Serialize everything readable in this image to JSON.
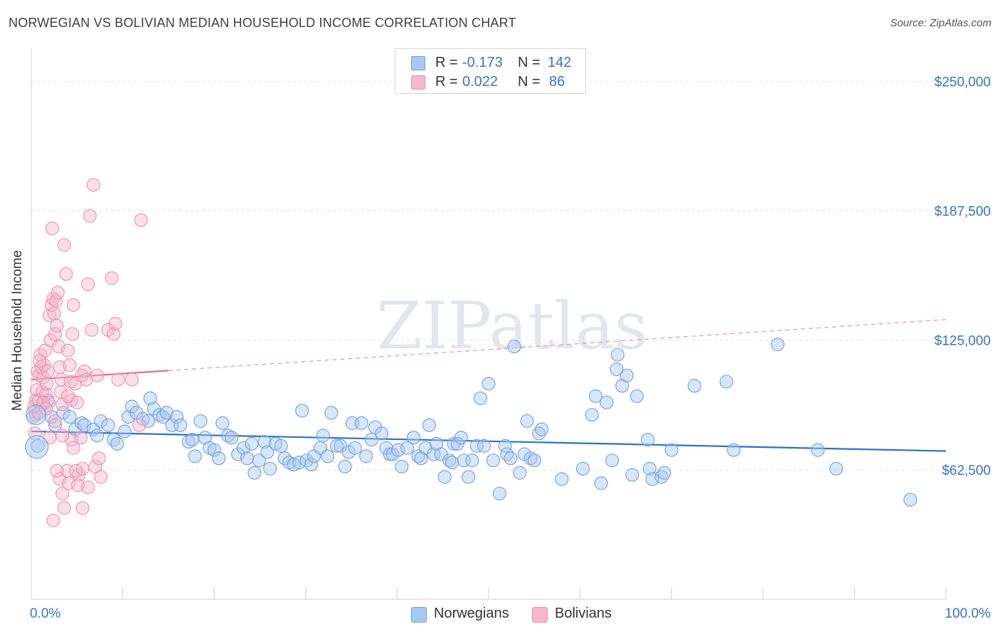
{
  "title": "NORWEGIAN VS BOLIVIAN MEDIAN HOUSEHOLD INCOME CORRELATION CHART",
  "source": "Source: ZipAtlas.com",
  "watermark": "ZIPatlas",
  "legend": {
    "rows": [
      {
        "r_label": "R =",
        "r_value": "-0.173",
        "n_label": "N =",
        "n_value": "142",
        "color": "#a9c8f1"
      },
      {
        "r_label": "R =",
        "r_value": "0.022",
        "n_label": "N =",
        "n_value": "86",
        "color": "#f5b8cd"
      }
    ]
  },
  "bottom_legend": [
    {
      "label": "Norwegians",
      "color": "#a9c8f1"
    },
    {
      "label": "Bolivians",
      "color": "#f5b8cd"
    }
  ],
  "chart_data": {
    "type": "scatter",
    "title": "NORWEGIAN VS BOLIVIAN MEDIAN HOUSEHOLD INCOME CORRELATION CHART",
    "xlabel": "",
    "ylabel": "Median Household Income",
    "xlim": [
      0,
      100
    ],
    "ylim": [
      0,
      262500
    ],
    "x_tick_labels": [
      "0.0%",
      "100.0%"
    ],
    "y_ticks": [
      62500,
      125000,
      187500,
      250000
    ],
    "y_tick_labels": [
      "$62,500",
      "$125,000",
      "$187,500",
      "$250,000"
    ],
    "grid": true,
    "legend_position": "top-center",
    "series": [
      {
        "name": "Norwegians",
        "color": "#6f9fe0",
        "fill": "#a9c8f1",
        "trend": {
          "x0": 0,
          "y0": 81000,
          "x1": 100,
          "y1": 71500,
          "dashed_from": null,
          "line_color": "#2f6fd0"
        },
        "points": [
          [
            0.5,
            89000
          ],
          [
            0.7,
            74000
          ],
          [
            1.3,
            94000
          ],
          [
            1.8,
            96000
          ],
          [
            2.2,
            88000
          ],
          [
            2.6,
            84000
          ],
          [
            3.5,
            90000
          ],
          [
            4.2,
            88000
          ],
          [
            4.8,
            82000
          ],
          [
            5.5,
            85000
          ],
          [
            5.8,
            84000
          ],
          [
            6.8,
            82000
          ],
          [
            7.2,
            79000
          ],
          [
            7.6,
            86000
          ],
          [
            8.4,
            84000
          ],
          [
            9.0,
            77000
          ],
          [
            9.4,
            75000
          ],
          [
            10.2,
            81000
          ],
          [
            10.6,
            88000
          ],
          [
            11.0,
            93000
          ],
          [
            11.5,
            90000
          ],
          [
            12.2,
            87000
          ],
          [
            12.8,
            86000
          ],
          [
            13.0,
            97000
          ],
          [
            13.4,
            92000
          ],
          [
            14.0,
            89000
          ],
          [
            14.4,
            88000
          ],
          [
            14.8,
            90000
          ],
          [
            15.4,
            84000
          ],
          [
            15.9,
            88000
          ],
          [
            16.3,
            84000
          ],
          [
            17.2,
            76000
          ],
          [
            17.6,
            77000
          ],
          [
            17.9,
            69000
          ],
          [
            18.5,
            86000
          ],
          [
            19.0,
            78000
          ],
          [
            19.5,
            73000
          ],
          [
            20.0,
            72000
          ],
          [
            20.5,
            68000
          ],
          [
            20.9,
            85000
          ],
          [
            21.5,
            79000
          ],
          [
            21.9,
            78000
          ],
          [
            22.6,
            70000
          ],
          [
            23.2,
            73000
          ],
          [
            23.6,
            68000
          ],
          [
            24.1,
            75000
          ],
          [
            24.4,
            61000
          ],
          [
            24.9,
            67000
          ],
          [
            25.5,
            76000
          ],
          [
            25.8,
            71000
          ],
          [
            26.1,
            63000
          ],
          [
            26.7,
            75000
          ],
          [
            27.3,
            74000
          ],
          [
            27.7,
            68000
          ],
          [
            28.2,
            66000
          ],
          [
            28.7,
            65000
          ],
          [
            29.3,
            66000
          ],
          [
            29.6,
            91000
          ],
          [
            30.1,
            67000
          ],
          [
            30.6,
            65000
          ],
          [
            30.9,
            69000
          ],
          [
            31.6,
            73000
          ],
          [
            31.9,
            79000
          ],
          [
            32.4,
            69000
          ],
          [
            32.8,
            90000
          ],
          [
            33.4,
            74000
          ],
          [
            33.8,
            74000
          ],
          [
            34.3,
            64000
          ],
          [
            34.7,
            71000
          ],
          [
            35.1,
            85000
          ],
          [
            35.4,
            73000
          ],
          [
            36.1,
            85000
          ],
          [
            36.6,
            69000
          ],
          [
            37.2,
            77000
          ],
          [
            37.6,
            83000
          ],
          [
            38.3,
            80000
          ],
          [
            38.8,
            73000
          ],
          [
            39.2,
            70000
          ],
          [
            39.5,
            70000
          ],
          [
            40.1,
            72000
          ],
          [
            40.5,
            64000
          ],
          [
            41.1,
            73000
          ],
          [
            41.8,
            78000
          ],
          [
            42.3,
            69000
          ],
          [
            42.6,
            68000
          ],
          [
            43.1,
            73000
          ],
          [
            43.5,
            84000
          ],
          [
            44.0,
            70000
          ],
          [
            44.3,
            75000
          ],
          [
            44.8,
            70000
          ],
          [
            45.2,
            59000
          ],
          [
            45.7,
            67000
          ],
          [
            46.2,
            75000
          ],
          [
            46.6,
            75000
          ],
          [
            47.0,
            78000
          ],
          [
            47.3,
            67000
          ],
          [
            47.8,
            59000
          ],
          [
            48.2,
            67000
          ],
          [
            48.7,
            74000
          ],
          [
            49.1,
            97000
          ],
          [
            49.5,
            74000
          ],
          [
            50.0,
            104000
          ],
          [
            50.5,
            67000
          ],
          [
            51.2,
            51000
          ],
          [
            51.8,
            74000
          ],
          [
            52.0,
            70000
          ],
          [
            52.4,
            68000
          ],
          [
            52.8,
            122000
          ],
          [
            53.4,
            61000
          ],
          [
            53.9,
            70000
          ],
          [
            54.2,
            86000
          ],
          [
            54.6,
            68000
          ],
          [
            55.0,
            67000
          ],
          [
            55.5,
            80000
          ],
          [
            55.8,
            82000
          ],
          [
            58.0,
            58000
          ],
          [
            60.3,
            63000
          ],
          [
            61.3,
            89000
          ],
          [
            61.7,
            98000
          ],
          [
            62.3,
            56000
          ],
          [
            62.9,
            95000
          ],
          [
            63.5,
            67000
          ],
          [
            64.1,
            118000
          ],
          [
            64.6,
            103000
          ],
          [
            65.1,
            108000
          ],
          [
            65.7,
            60000
          ],
          [
            66.2,
            98000
          ],
          [
            67.4,
            77000
          ],
          [
            67.6,
            63000
          ],
          [
            67.9,
            58000
          ],
          [
            68.9,
            59000
          ],
          [
            69.2,
            61000
          ],
          [
            70.0,
            72000
          ],
          [
            72.5,
            103000
          ],
          [
            76.0,
            105000
          ],
          [
            76.8,
            72000
          ],
          [
            81.6,
            123000
          ],
          [
            96.1,
            48000
          ],
          [
            86.0,
            72000
          ],
          [
            88.0,
            63000
          ],
          [
            64.0,
            111000
          ],
          [
            46.0,
            66000
          ]
        ]
      },
      {
        "name": "Bolivians",
        "color": "#ec8fb0",
        "fill": "#f5b8cd",
        "trend": {
          "x0": 0,
          "y0": 106000,
          "x1": 100,
          "y1": 135000,
          "solid_until": 15,
          "line_color": "#e46b97"
        },
        "points": [
          [
            0.2,
            88000
          ],
          [
            0.3,
            93000
          ],
          [
            0.4,
            80000
          ],
          [
            0.5,
            96000
          ],
          [
            0.6,
            101000
          ],
          [
            0.7,
            110000
          ],
          [
            0.8,
            96000
          ],
          [
            0.9,
            108000
          ],
          [
            1.0,
            118000
          ],
          [
            1.1,
            112000
          ],
          [
            1.2,
            100000
          ],
          [
            1.3,
            107000
          ],
          [
            1.4,
            113000
          ],
          [
            1.5,
            120000
          ],
          [
            1.6,
            99000
          ],
          [
            1.7,
            104000
          ],
          [
            1.8,
            110000
          ],
          [
            1.9,
            95000
          ],
          [
            2.0,
            137000
          ],
          [
            2.1,
            125000
          ],
          [
            2.2,
            142000
          ],
          [
            2.3,
            179000
          ],
          [
            2.4,
            145000
          ],
          [
            2.5,
            138000
          ],
          [
            2.6,
            128000
          ],
          [
            2.7,
            144000
          ],
          [
            2.8,
            132000
          ],
          [
            2.9,
            148000
          ],
          [
            3.0,
            122000
          ],
          [
            3.1,
            112000
          ],
          [
            3.2,
            100000
          ],
          [
            3.3,
            106000
          ],
          [
            3.4,
            94000
          ],
          [
            3.6,
            171000
          ],
          [
            3.8,
            157000
          ],
          [
            4.0,
            120000
          ],
          [
            4.2,
            113000
          ],
          [
            4.3,
            105000
          ],
          [
            4.4,
            96000
          ],
          [
            4.5,
            128000
          ],
          [
            4.6,
            142000
          ],
          [
            4.8,
            104000
          ],
          [
            5.0,
            95000
          ],
          [
            5.2,
            60000
          ],
          [
            5.4,
            78000
          ],
          [
            5.6,
            44000
          ],
          [
            5.8,
            110000
          ],
          [
            6.0,
            106000
          ],
          [
            6.2,
            152000
          ],
          [
            6.4,
            185000
          ],
          [
            6.6,
            130000
          ],
          [
            6.8,
            200000
          ],
          [
            7.0,
            64000
          ],
          [
            7.4,
            68000
          ],
          [
            7.6,
            59000
          ],
          [
            8.4,
            130000
          ],
          [
            8.8,
            155000
          ],
          [
            9.0,
            128000
          ],
          [
            9.2,
            133000
          ],
          [
            9.5,
            106000
          ],
          [
            12.0,
            183000
          ],
          [
            11.8,
            84000
          ],
          [
            11.0,
            106000
          ],
          [
            2.4,
            38000
          ],
          [
            2.0,
            78000
          ],
          [
            3.1,
            58000
          ],
          [
            3.4,
            51000
          ],
          [
            3.6,
            44000
          ],
          [
            3.9,
            62000
          ],
          [
            4.1,
            56000
          ],
          [
            4.4,
            77000
          ],
          [
            4.6,
            73000
          ],
          [
            4.9,
            62000
          ],
          [
            5.1,
            55000
          ],
          [
            5.6,
            63000
          ],
          [
            6.2,
            54000
          ],
          [
            7.2,
            108000
          ],
          [
            2.8,
            62000
          ],
          [
            1.3,
            95000
          ],
          [
            0.8,
            90000
          ],
          [
            2.6,
            86000
          ],
          [
            3.4,
            79000
          ],
          [
            1.6,
            92000
          ],
          [
            0.9,
            115000
          ],
          [
            5.5,
            108000
          ],
          [
            4.0,
            98000
          ]
        ]
      }
    ]
  }
}
